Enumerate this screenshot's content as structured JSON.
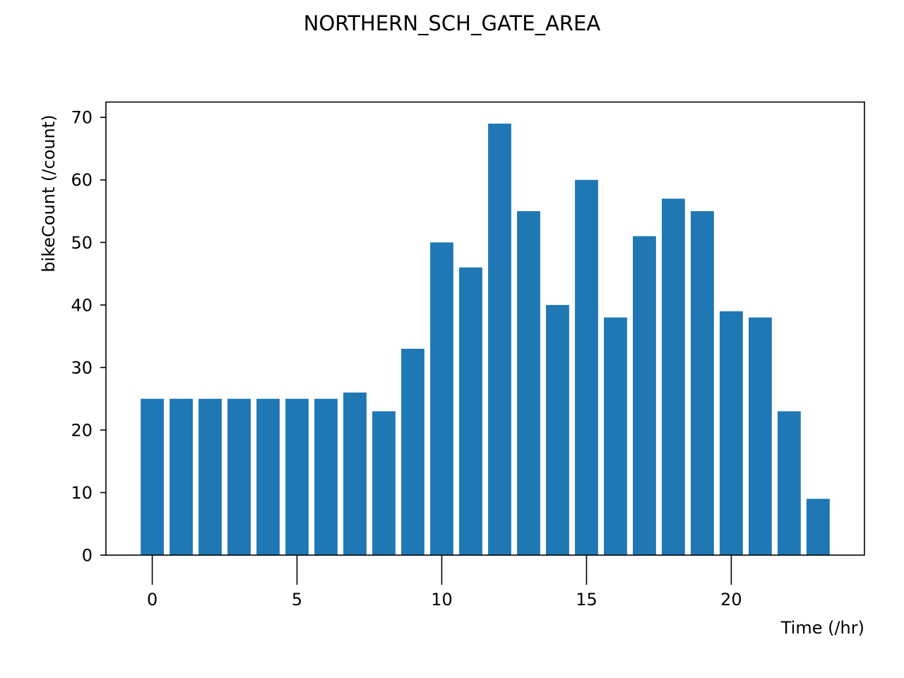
{
  "chart_data": {
    "type": "bar",
    "title": "NORTHERN_SCH_GATE_AREA",
    "xlabel": "Time (/hr)",
    "ylabel": "bikeCount (/count)",
    "x": [
      0,
      1,
      2,
      3,
      4,
      5,
      6,
      7,
      8,
      9,
      10,
      11,
      12,
      13,
      14,
      15,
      16,
      17,
      18,
      19,
      20,
      21,
      22,
      23
    ],
    "values": [
      25,
      25,
      25,
      25,
      25,
      25,
      25,
      26,
      23,
      33,
      50,
      46,
      69,
      55,
      40,
      60,
      38,
      51,
      57,
      55,
      39,
      38,
      23,
      9
    ],
    "xlim": [
      -1.6,
      24.6
    ],
    "ylim": [
      0,
      72.45
    ],
    "xticks": [
      0,
      5,
      10,
      15,
      20
    ],
    "xtick_labels": [
      "0",
      "5",
      "10",
      "15",
      "20"
    ],
    "yticks": [
      0,
      10,
      20,
      30,
      40,
      50,
      60,
      70
    ],
    "ytick_labels": [
      "0",
      "10",
      "20",
      "30",
      "40",
      "50",
      "60",
      "70"
    ],
    "bar_color": "#1f77b4",
    "grid": false,
    "legend": "none"
  }
}
